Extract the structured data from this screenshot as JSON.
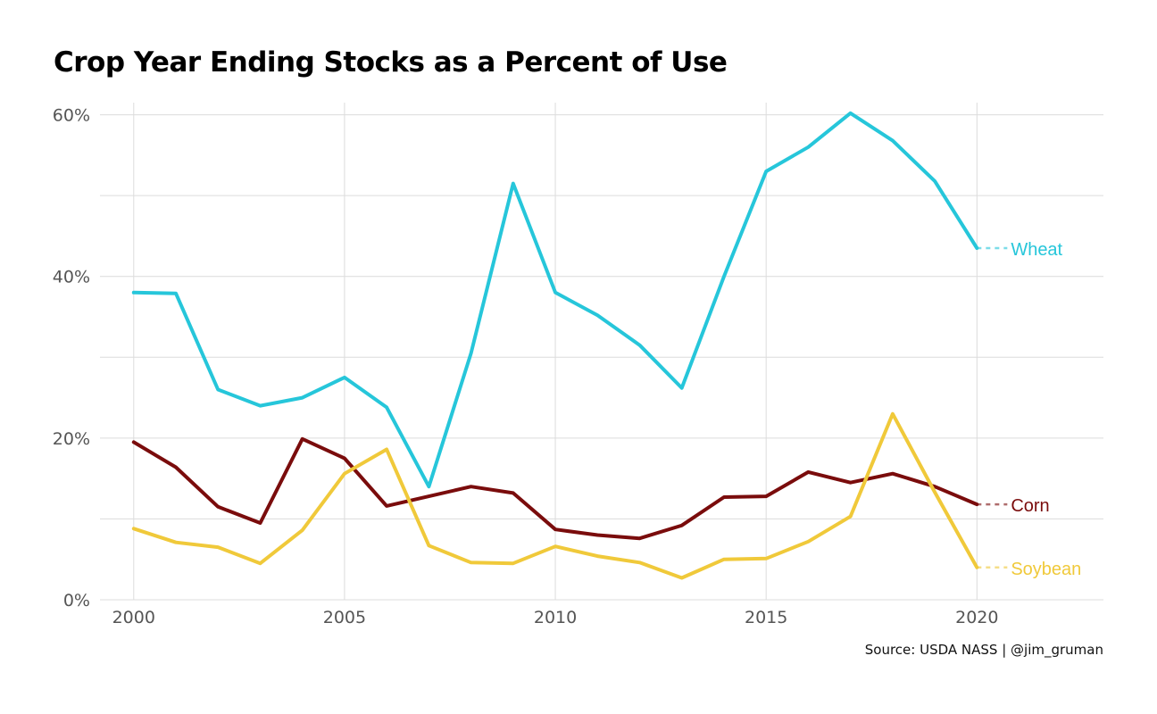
{
  "chart_data": {
    "type": "line",
    "title": "Crop Year Ending Stocks as a Percent of Use",
    "caption": "Source: USDA NASS | @jim_gruman",
    "xlabel": "",
    "ylabel": "",
    "xlim": [
      1999.2,
      2023.0
    ],
    "ylim": [
      0,
      60
    ],
    "x_ticks": [
      2000,
      2005,
      2010,
      2015,
      2020
    ],
    "y_ticks": [
      0,
      20,
      40,
      60
    ],
    "y_tick_labels": [
      "0%",
      "20%",
      "40%",
      "60%"
    ],
    "grid": true,
    "legend": "direct labels at right end",
    "x": [
      2000,
      2001,
      2002,
      2003,
      2004,
      2005,
      2006,
      2007,
      2008,
      2009,
      2010,
      2011,
      2012,
      2013,
      2014,
      2015,
      2016,
      2017,
      2018,
      2019,
      2020
    ],
    "series": [
      {
        "name": "Wheat",
        "color": "#26C6DA",
        "values": [
          38.0,
          37.9,
          26.0,
          24.0,
          25.0,
          27.5,
          23.8,
          14.0,
          30.5,
          51.5,
          38.0,
          35.2,
          31.5,
          26.2,
          40.0,
          53.0,
          56.0,
          60.2,
          56.8,
          51.8,
          43.5
        ]
      },
      {
        "name": "Corn",
        "color": "#7A0C0C",
        "values": [
          19.5,
          16.4,
          11.5,
          9.5,
          19.9,
          17.5,
          11.6,
          12.8,
          14.0,
          13.2,
          8.7,
          8.0,
          7.6,
          9.2,
          12.7,
          12.8,
          15.8,
          14.5,
          15.6,
          14.0,
          11.8
        ]
      },
      {
        "name": "Soybean",
        "color": "#F0C93A",
        "values": [
          8.8,
          7.1,
          6.5,
          4.5,
          8.6,
          15.6,
          18.6,
          6.7,
          4.6,
          4.5,
          6.6,
          5.4,
          4.6,
          2.7,
          5.0,
          5.1,
          7.2,
          10.3,
          23.0,
          13.3,
          4.0
        ]
      }
    ]
  }
}
